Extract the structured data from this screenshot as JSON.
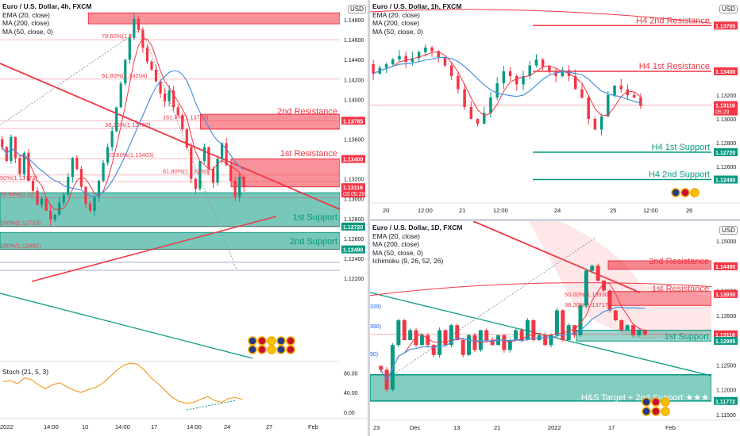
{
  "currency_badge": "USD",
  "chart_data": [
    {
      "id": "p1",
      "type": "candlestick",
      "title": "Euro / U.S. Dollar, 4h, FXCM",
      "indicators": [
        "EMA (20, close)",
        "MA (200, close)",
        "MA (50, close, 0)"
      ],
      "ylim": [
        1.1145,
        1.15
      ],
      "y_ticks": [
        "1.14800",
        "1.14600",
        "1.14400",
        "1.14200",
        "1.14000",
        "1.13800",
        "1.13600",
        "1.13400",
        "1.13200",
        "1.13000",
        "1.12800",
        "1.12600",
        "1.12400",
        "1.12200"
      ],
      "x_ticks": [
        "2022",
        "14:00",
        "10",
        "14:00",
        "17",
        "14:00",
        "24",
        "27",
        "Feb"
      ],
      "price_tags": [
        {
          "label": "1.13785",
          "value": 1.13785,
          "color": "#f23645"
        },
        {
          "label": "1.13400",
          "value": 1.134,
          "color": "#f23645"
        },
        {
          "label": "1.13116",
          "value": 1.13116,
          "color": "#f23645",
          "sub": "03:05:29"
        },
        {
          "label": "1.12720",
          "value": 1.1272,
          "color": "#089981"
        },
        {
          "label": "1.12490",
          "value": 1.1249,
          "color": "#089981"
        }
      ],
      "zones": [
        {
          "type": "resistance",
          "from": 1.1476,
          "to": 1.1487,
          "x0": 0.26,
          "x1": 1.0
        },
        {
          "type": "resistance",
          "from": 1.137,
          "to": 1.1385,
          "x0": 0.59,
          "x1": 1.0
        },
        {
          "type": "resistance",
          "from": 1.1312,
          "to": 1.134,
          "x0": 0.68,
          "x1": 1.0
        },
        {
          "type": "support",
          "from": 1.1272,
          "to": 1.1306,
          "x0": 0.0,
          "x1": 1.0
        },
        {
          "type": "support",
          "from": 1.1249,
          "to": 1.1266,
          "x0": 0.0,
          "x1": 1.0
        }
      ],
      "labels": [
        {
          "text": "2nd Resistance",
          "value": 1.13885
        },
        {
          "text": "1st Resistance",
          "value": 1.1346
        },
        {
          "text": "1st Support",
          "value": 1.1282
        },
        {
          "text": "2nd Support",
          "value": 1.12575
        }
      ],
      "fib_levels": [
        {
          "text": "78.60%(1.1...",
          "value": 1.146
        },
        {
          "text": "61.80%(1.14204)",
          "value": 1.14204
        },
        {
          "text": "161.8%(1.13783)",
          "value": 1.13783
        },
        {
          "text": "38.20%(1.13707)",
          "value": 1.13707
        },
        {
          "text": "23.60%(1.13403)",
          "value": 1.13403
        },
        {
          "text": "61.80%(1.13239)",
          "value": 1.13239
        },
        {
          "text": "50%(1.13173)",
          "value": 1.13173
        },
        {
          "text": "78.60%(1.12...",
          "value": 1.1301
        },
        {
          "text": "100%(1.12723)",
          "value": 1.12723
        },
        {
          "text": "100%(1.12492)",
          "value": 1.12492
        }
      ],
      "closes": [
        1.1352,
        1.1338,
        1.1362,
        1.1341,
        1.1325,
        1.1346,
        1.1318,
        1.1308,
        1.1294,
        1.13,
        1.1288,
        1.1279,
        1.1284,
        1.1296,
        1.1304,
        1.1322,
        1.1341,
        1.133,
        1.1312,
        1.1295,
        1.1288,
        1.1302,
        1.1318,
        1.1336,
        1.1352,
        1.1368,
        1.1392,
        1.1416,
        1.144,
        1.1462,
        1.1481,
        1.147,
        1.1452,
        1.1438,
        1.143,
        1.1418,
        1.1406,
        1.1398,
        1.1409,
        1.1392,
        1.1384,
        1.137,
        1.1352,
        1.132,
        1.131,
        1.1338,
        1.1352,
        1.133,
        1.1316,
        1.134,
        1.1356,
        1.1334,
        1.1318,
        1.1302,
        1.1322,
        1.1312
      ],
      "stoch": {
        "title": "Stoch (21, 5, 3)",
        "y_ticks": [
          "80.00",
          "40.00",
          "0.00"
        ],
        "k": [
          62,
          64,
          58,
          70,
          66,
          55,
          48,
          56,
          60,
          52,
          45,
          40,
          46,
          50,
          58,
          70,
          84,
          95,
          100,
          98,
          86,
          70,
          58,
          44,
          30,
          22,
          18,
          20,
          26,
          32,
          24,
          20,
          28,
          30,
          26
        ]
      }
    },
    {
      "id": "p2",
      "type": "candlestick",
      "title": "Euro / U.S. Dollar, 1h, FXCM",
      "indicators": [
        "EMA (20, close)",
        "MA (200, close)",
        "MA (50, close, 0)"
      ],
      "ylim": [
        1.123,
        1.14
      ],
      "x_ticks": [
        "20",
        "12:00",
        "21",
        "12:00",
        "24",
        "25",
        "12:00",
        "26"
      ],
      "y_ticks": [
        "1.13200",
        "1.13000",
        "1.12800",
        "1.12600"
      ],
      "price_tags": [
        {
          "label": "1.13785",
          "value": 1.13785,
          "color": "#f23645"
        },
        {
          "label": "1.13400",
          "value": 1.134,
          "color": "#f23645"
        },
        {
          "label": "1.13116",
          "value": 1.13116,
          "color": "#f23645",
          "sub": "05:29"
        },
        {
          "label": "1.12720",
          "value": 1.1272,
          "color": "#089981"
        },
        {
          "label": "1.12490",
          "value": 1.1249,
          "color": "#089981"
        }
      ],
      "labels": [
        {
          "text": "H4 2nd Resistance",
          "value": 1.13785,
          "color": "#f23645"
        },
        {
          "text": "H4 1st Resistance",
          "value": 1.134,
          "color": "#f23645"
        },
        {
          "text": "H4 1st Support",
          "value": 1.1272,
          "color": "#089981"
        },
        {
          "text": "H4 2nd Support",
          "value": 1.1249,
          "color": "#089981"
        }
      ],
      "closes": [
        1.1338,
        1.1343,
        1.1346,
        1.135,
        1.1353,
        1.1348,
        1.1351,
        1.1356,
        1.136,
        1.1357,
        1.1352,
        1.1345,
        1.1336,
        1.1325,
        1.131,
        1.13,
        1.1296,
        1.1305,
        1.1318,
        1.133,
        1.134,
        1.1336,
        1.1329,
        1.1336,
        1.1345,
        1.135,
        1.1344,
        1.134,
        1.1336,
        1.1341,
        1.1336,
        1.1325,
        1.1318,
        1.13,
        1.1291,
        1.1302,
        1.132,
        1.1328,
        1.1325,
        1.132,
        1.1318,
        1.1311
      ]
    },
    {
      "id": "p3",
      "type": "candlestick",
      "title": "Euro / U.S. Dollar, 1D, FXCM",
      "indicators": [
        "EMA (20, close)",
        "MA (200, close)",
        "MA (50, close, 0)",
        "Ichimoku (9, 26, 52, 26)"
      ],
      "ylim": [
        1.114,
        1.154
      ],
      "x_ticks": [
        "23",
        "Dec",
        "13",
        "21",
        "2022",
        "17",
        "Feb"
      ],
      "y_ticks": [
        "1.15000",
        "1.14500",
        "1.14000",
        "1.13500",
        "1.13000",
        "1.12500",
        "1.12000",
        "1.11500"
      ],
      "price_tags": [
        {
          "label": "1.14490",
          "value": 1.1449,
          "color": "#f23645"
        },
        {
          "label": "1.13930",
          "value": 1.1393,
          "color": "#f23645"
        },
        {
          "label": "1.13116",
          "value": 1.13116,
          "color": "#f23645",
          "sub": "19:05:29"
        },
        {
          "label": "1.12985",
          "value": 1.12985,
          "color": "#089981"
        },
        {
          "label": "1.11772",
          "value": 1.11772,
          "color": "#089981"
        }
      ],
      "labels": [
        {
          "text": "2nd Resistance",
          "value": 1.146
        },
        {
          "text": "1st Resistance",
          "value": 1.1405
        },
        {
          "text": "1st Support",
          "value": 1.1308
        },
        {
          "text": "H&S Target + 2nd Support ★★★",
          "value": 1.1185
        }
      ],
      "fib_levels": [
        {
          "text": "50.00%(1.13930)",
          "value": 1.1393
        },
        {
          "text": "38.20%(1.13717)",
          "value": 1.13717
        }
      ],
      "left_values": [
        "339)",
        "390)",
        "90)"
      ],
      "closes": [
        1.124,
        1.12,
        1.129,
        1.134,
        1.13,
        1.132,
        1.129,
        1.131,
        1.129,
        1.127,
        1.132,
        1.129,
        1.133,
        1.13,
        1.127,
        1.131,
        1.128,
        1.132,
        1.13,
        1.129,
        1.131,
        1.128,
        1.13,
        1.132,
        1.13,
        1.134,
        1.13,
        1.131,
        1.129,
        1.131,
        1.136,
        1.13,
        1.133,
        1.131,
        1.137,
        1.144,
        1.145,
        1.142,
        1.14,
        1.136,
        1.134,
        1.132,
        1.133,
        1.131,
        1.132,
        1.1311
      ]
    }
  ]
}
